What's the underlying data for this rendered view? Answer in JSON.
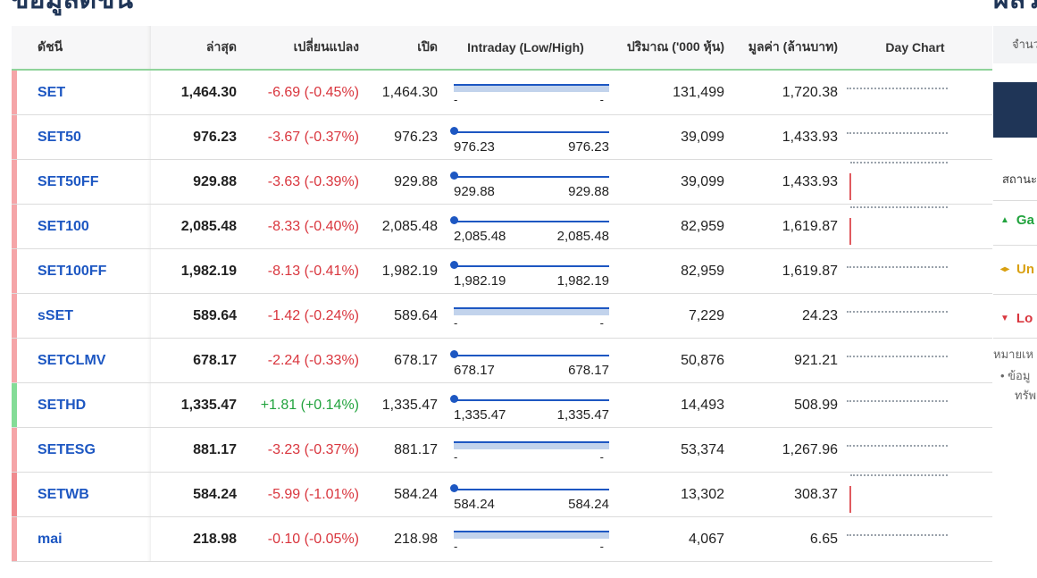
{
  "page": {
    "title": "ข้อมูลดัชนี",
    "right_title": "ผลร"
  },
  "table": {
    "headers": {
      "name": "ดัชนี",
      "last": "ล่าสุด",
      "change": "เปลี่ยนแปลง",
      "open": "เปิด",
      "intraday": "Intraday (Low/High)",
      "volume": "ปริมาณ ('000 หุ้น)",
      "value": "มูลค่า (ล้านบาท)",
      "day_chart": "Day Chart"
    },
    "rows": [
      {
        "name": "SET",
        "last": "1,464.30",
        "change": "-6.69 (-0.45%)",
        "dir": "neg",
        "open": "1,464.30",
        "intraday": "bar",
        "low": "-",
        "high": "-",
        "volume": "131,499",
        "value": "1,720.38",
        "day": "dots"
      },
      {
        "name": "SET50",
        "last": "976.23",
        "change": "-3.67 (-0.37%)",
        "dir": "neg",
        "open": "976.23",
        "intraday": "dot",
        "low": "976.23",
        "high": "976.23",
        "volume": "39,099",
        "value": "1,433.93",
        "day": "dots"
      },
      {
        "name": "SET50FF",
        "last": "929.88",
        "change": "-3.63 (-0.39%)",
        "dir": "neg",
        "open": "929.88",
        "intraday": "dot",
        "low": "929.88",
        "high": "929.88",
        "volume": "39,099",
        "value": "1,433.93",
        "day": "tick"
      },
      {
        "name": "SET100",
        "last": "2,085.48",
        "change": "-8.33 (-0.40%)",
        "dir": "neg",
        "open": "2,085.48",
        "intraday": "dot",
        "low": "2,085.48",
        "high": "2,085.48",
        "volume": "82,959",
        "value": "1,619.87",
        "day": "tick"
      },
      {
        "name": "SET100FF",
        "last": "1,982.19",
        "change": "-8.13 (-0.41%)",
        "dir": "neg",
        "open": "1,982.19",
        "intraday": "dot",
        "low": "1,982.19",
        "high": "1,982.19",
        "volume": "82,959",
        "value": "1,619.87",
        "day": "dots"
      },
      {
        "name": "sSET",
        "last": "589.64",
        "change": "-1.42 (-0.24%)",
        "dir": "neg",
        "open": "589.64",
        "intraday": "bar",
        "low": "-",
        "high": "-",
        "volume": "7,229",
        "value": "24.23",
        "day": "dots"
      },
      {
        "name": "SETCLMV",
        "last": "678.17",
        "change": "-2.24 (-0.33%)",
        "dir": "neg",
        "open": "678.17",
        "intraday": "dot",
        "low": "678.17",
        "high": "678.17",
        "volume": "50,876",
        "value": "921.21",
        "day": "dots"
      },
      {
        "name": "SETHD",
        "last": "1,335.47",
        "change": "+1.81 (+0.14%)",
        "dir": "pos",
        "open": "1,335.47",
        "intraday": "dot",
        "low": "1,335.47",
        "high": "1,335.47",
        "volume": "14,493",
        "value": "508.99",
        "day": "dots"
      },
      {
        "name": "SETESG",
        "last": "881.17",
        "change": "-3.23 (-0.37%)",
        "dir": "neg",
        "open": "881.17",
        "intraday": "bar",
        "low": "-",
        "high": "-",
        "volume": "53,374",
        "value": "1,267.96",
        "day": "dots"
      },
      {
        "name": "SETWB",
        "last": "584.24",
        "change": "-5.99 (-1.01%)",
        "dir": "neg-strong",
        "open": "584.24",
        "intraday": "dot",
        "low": "584.24",
        "high": "584.24",
        "volume": "13,302",
        "value": "308.37",
        "day": "tick"
      },
      {
        "name": "mai",
        "last": "218.98",
        "change": "-0.10 (-0.05%)",
        "dir": "neg",
        "open": "218.98",
        "intraday": "bar",
        "low": "-",
        "high": "-",
        "volume": "4,067",
        "value": "6.65",
        "day": "dots"
      }
    ]
  },
  "right_panel": {
    "input_placeholder": "จำนว",
    "status_label": "สถานะ",
    "gain_label": "Ga",
    "unchanged_label": "Un",
    "loss_label": "Lo",
    "note_label": "หมายเห",
    "note_bullet": "ข้อมู",
    "note_bullet2": "ทรัพ"
  },
  "colors": {
    "brand_navy": "#1f3557",
    "link_blue": "#1d57c2",
    "negative": "#d9363e",
    "positive": "#22a33e",
    "unchanged": "#d9a011"
  }
}
